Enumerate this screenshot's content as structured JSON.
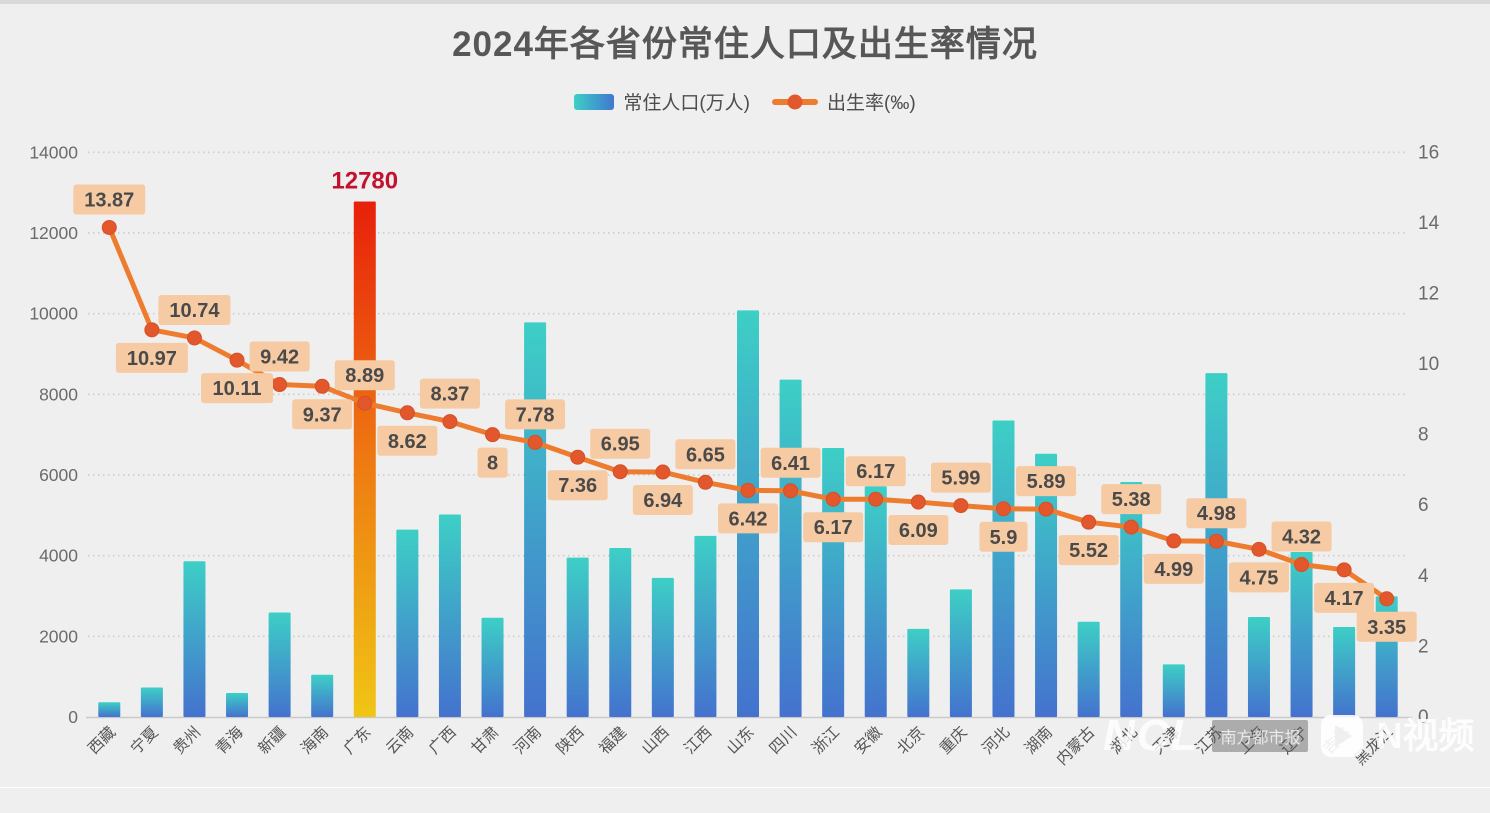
{
  "title": "2024年各省份常住人口及出生率情况",
  "legend": {
    "bar_label": "常住人口(万人)",
    "line_label": "出生率(‰)"
  },
  "watermark": {
    "logo_text": "NCL",
    "badge_text": "南方都市报",
    "video_text": "N视频"
  },
  "colors": {
    "background": "#efeff0",
    "title_text": "#575757",
    "axis_text": "#6b6b6b",
    "category_text": "#555555",
    "gridline": "#cccccc",
    "bar_gradient_top": "#3dcfc6",
    "bar_gradient_bottom": "#4472ce",
    "highlight_gradient_top": "#e8200b",
    "highlight_gradient_mid": "#ee7d12",
    "highlight_gradient_bottom": "#f0c514",
    "highlight_value_text": "#c2122e",
    "line": "#ee7c2f",
    "line_point": "#e2572c",
    "rate_label_bg": "#f6caa2",
    "rate_label_text": "#4a4a4a"
  },
  "chart_data": {
    "type": "bar",
    "title": "2024年各省份常住人口及出生率情况",
    "categories": [
      "西藏",
      "宁夏",
      "贵州",
      "青海",
      "新疆",
      "海南",
      "广东",
      "云南",
      "广西",
      "甘肃",
      "河南",
      "陕西",
      "福建",
      "山西",
      "江西",
      "山东",
      "四川",
      "浙江",
      "安徽",
      "北京",
      "重庆",
      "河北",
      "湖南",
      "内蒙古",
      "湖北",
      "天津",
      "江苏",
      "上海",
      "辽宁",
      "吉林",
      "黑龙江"
    ],
    "series": [
      {
        "name": "常住人口(万人)",
        "type": "bar",
        "axis": "left",
        "values": [
          366,
          730,
          3860,
          594,
          2590,
          1048,
          12780,
          4645,
          5020,
          2460,
          9785,
          3950,
          4190,
          3450,
          4490,
          10080,
          8365,
          6670,
          5720,
          2185,
          3165,
          7350,
          6525,
          2360,
          5825,
          1305,
          8525,
          2480,
          4090,
          2230,
          2990
        ]
      },
      {
        "name": "出生率(‰)",
        "type": "line",
        "axis": "right",
        "values": [
          13.87,
          10.97,
          10.74,
          10.11,
          9.42,
          9.37,
          8.89,
          8.62,
          8.37,
          8,
          7.78,
          7.36,
          6.95,
          6.94,
          6.65,
          6.42,
          6.41,
          6.17,
          6.17,
          6.09,
          5.99,
          5.9,
          5.89,
          5.52,
          5.38,
          4.99,
          4.98,
          4.75,
          4.32,
          4.17,
          3.35
        ]
      }
    ],
    "highlight": {
      "category": "广东",
      "value_label": "12780"
    },
    "left_axis": {
      "label": "常住人口(万人)",
      "min": 0,
      "max": 14000,
      "ticks": [
        0,
        2000,
        4000,
        6000,
        8000,
        10000,
        12000,
        14000
      ]
    },
    "right_axis": {
      "label": "出生率(‰)",
      "min": 0,
      "max": 16,
      "ticks": [
        0,
        2,
        4,
        6,
        8,
        10,
        12,
        14,
        16
      ]
    },
    "grid": "horizontal dotted",
    "legend_position": "top-center",
    "category_label_rotation": -45
  }
}
